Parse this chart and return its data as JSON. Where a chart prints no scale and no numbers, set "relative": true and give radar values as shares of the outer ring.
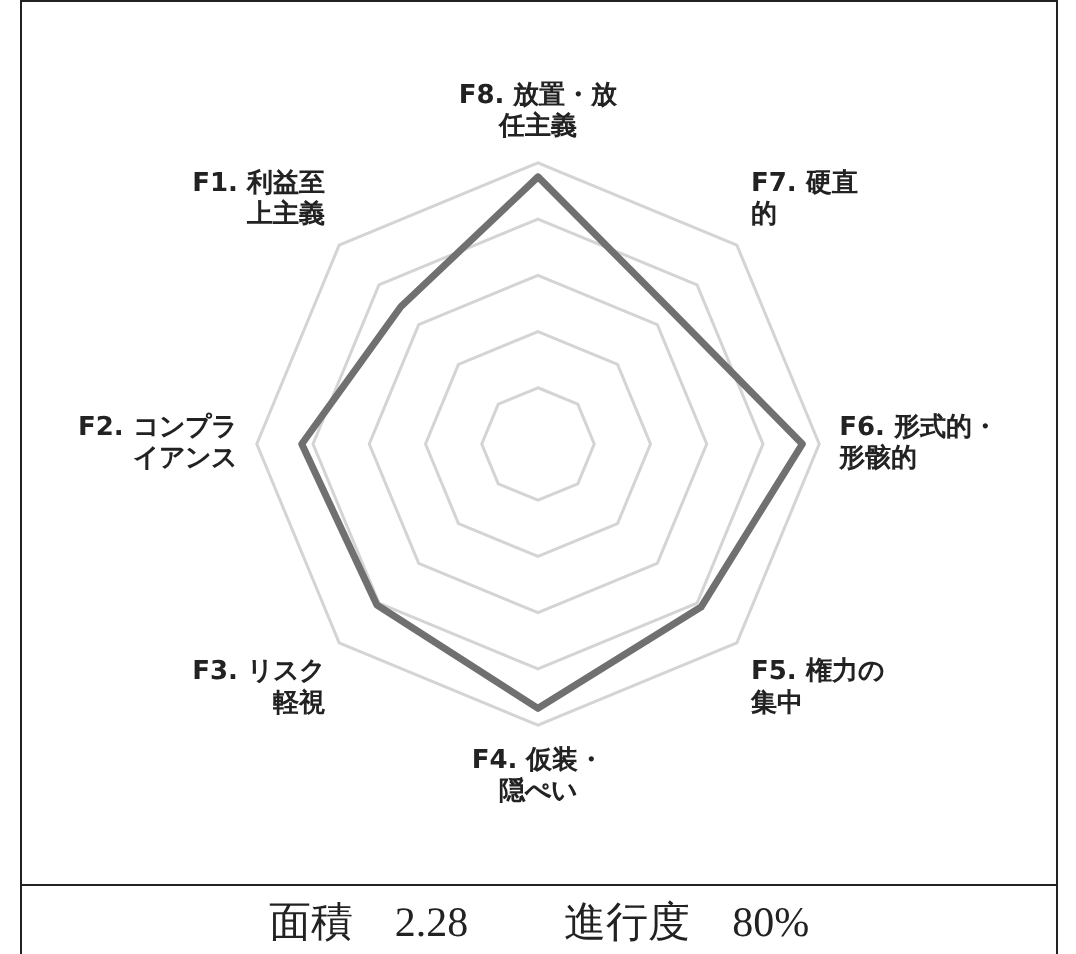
{
  "chart_data": {
    "type": "radar",
    "relative": true,
    "grid": true,
    "categories": [
      "F8. 放置・放任主義",
      "F7. 硬直的",
      "F6. 形式的・形骸的",
      "F5. 権力の集中",
      "F4. 仮装・隠ぺい",
      "F3. リスク軽視",
      "F2. コンプライアンス",
      "F1. 利益至上主義"
    ],
    "series": [
      {
        "color": "#707070",
        "values": [
          0.95,
          0.67,
          0.94,
          0.82,
          0.94,
          0.81,
          0.84,
          0.69
        ]
      }
    ],
    "annotations": [
      "面積　2.28",
      "進行度　80%"
    ]
  }
}
